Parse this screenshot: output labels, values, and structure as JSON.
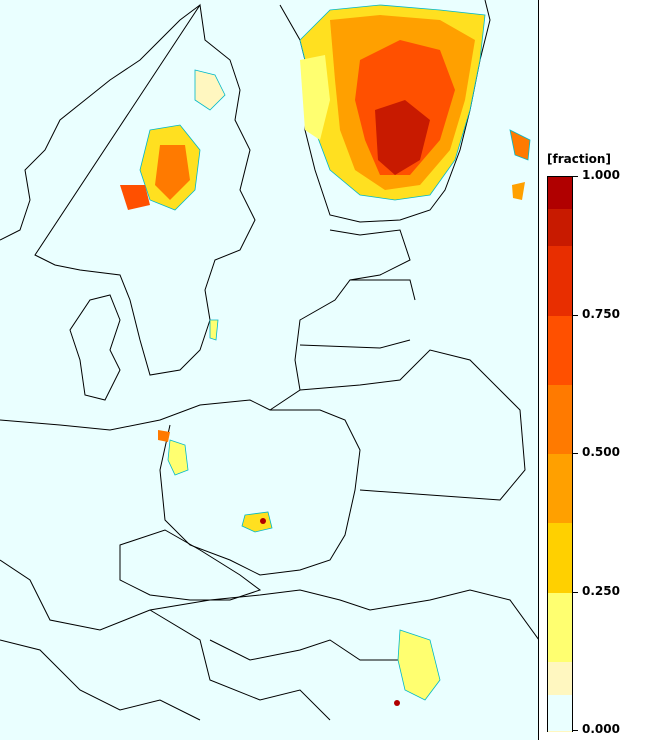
{
  "legend": {
    "unit_label": "[fraction]",
    "ticks": [
      {
        "label": "1.000",
        "value": 1.0
      },
      {
        "label": "0.750",
        "value": 0.75
      },
      {
        "label": "0.500",
        "value": 0.5
      },
      {
        "label": "0.250",
        "value": 0.25
      },
      {
        "label": "0.000",
        "value": 0.0
      }
    ],
    "min": 0.0,
    "max": 1.0,
    "color_bins": [
      "#eaffff",
      "#fff7c0",
      "#ffff70",
      "#ffe020",
      "#ffc000",
      "#ffa000",
      "#ff7a00",
      "#ff5000",
      "#e82e00",
      "#c81a00",
      "#b00000"
    ]
  },
  "colors": {
    "map_background": "#eaffff",
    "coastline": "#000000",
    "contour_outline": "#00b8c8"
  }
}
